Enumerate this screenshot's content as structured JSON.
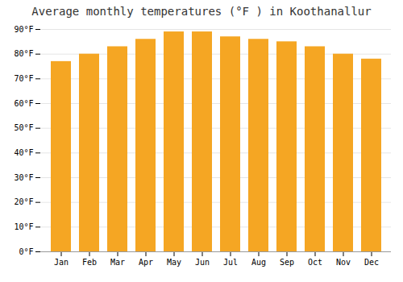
{
  "chart_data": {
    "type": "bar",
    "title": "Average monthly temperatures (°F ) in Koothanallur",
    "categories": [
      "Jan",
      "Feb",
      "Mar",
      "Apr",
      "May",
      "Jun",
      "Jul",
      "Aug",
      "Sep",
      "Oct",
      "Nov",
      "Dec"
    ],
    "values": [
      77,
      80,
      83,
      86,
      89,
      89,
      87,
      86,
      85,
      83,
      80,
      78
    ],
    "color": "#F5A623",
    "ylim": [
      0,
      90
    ],
    "yticks": [
      {
        "value": 0,
        "label": "0°F"
      },
      {
        "value": 10,
        "label": "10°F"
      },
      {
        "value": 20,
        "label": "20°F"
      },
      {
        "value": 30,
        "label": "30°F"
      },
      {
        "value": 40,
        "label": "40°F"
      },
      {
        "value": 50,
        "label": "50°F"
      },
      {
        "value": 60,
        "label": "60°F"
      },
      {
        "value": 70,
        "label": "70°F"
      },
      {
        "value": 80,
        "label": "80°F"
      },
      {
        "value": 90,
        "label": "90°F"
      }
    ],
    "grid": true
  }
}
